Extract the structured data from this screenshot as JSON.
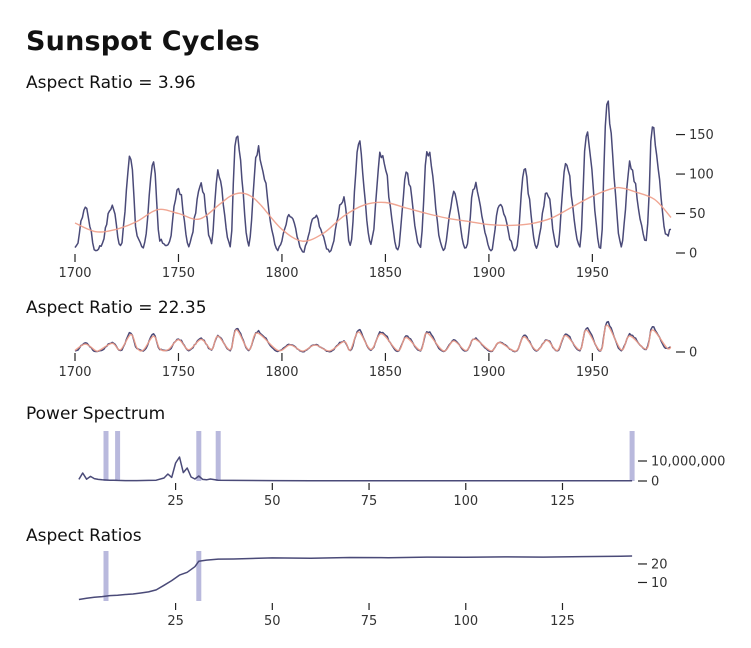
{
  "page": {
    "title": "Sunspot Cycles"
  },
  "chart_data": [
    {
      "type": "line",
      "title": "Aspect Ratio = 3.96",
      "xlabel": "",
      "ylabel": "",
      "xlim": [
        1700,
        1988
      ],
      "ylim": [
        0,
        190
      ],
      "x_ticks": [
        1700,
        1750,
        1800,
        1850,
        1900,
        1950
      ],
      "y_ticks": [
        0,
        50,
        100,
        150
      ],
      "grid": false,
      "series": [
        {
          "color": "#4a4a78",
          "style": "sunspot-monthly",
          "x": [
            1700,
            1705,
            1710,
            1712,
            1718,
            1722,
            1727,
            1730,
            1733,
            1738,
            1741,
            1745,
            1750,
            1755,
            1761,
            1766,
            1769,
            1775,
            1778,
            1784,
            1788,
            1798,
            1804,
            1810,
            1816,
            1823,
            1830,
            1833,
            1837,
            1843,
            1848,
            1856,
            1860,
            1867,
            1870,
            1878,
            1883,
            1889,
            1893,
            1901,
            1905,
            1913,
            1917,
            1923,
            1928,
            1933,
            1937,
            1944,
            1947,
            1954,
            1957,
            1964,
            1968,
            1976,
            1979,
            1986,
            1988
          ],
          "y": [
            5,
            58,
            3,
            8,
            60,
            10,
            122,
            20,
            8,
            110,
            15,
            10,
            83,
            10,
            85,
            12,
            106,
            10,
            155,
            10,
            132,
            5,
            47,
            2,
            46,
            3,
            70,
            8,
            140,
            12,
            128,
            5,
            98,
            7,
            132,
            3,
            75,
            5,
            87,
            3,
            63,
            2,
            104,
            6,
            78,
            5,
            114,
            10,
            152,
            5,
            190,
            10,
            110,
            15,
            155,
            22,
            30
          ]
        },
        {
          "color": "#ee9c87",
          "style": "smooth",
          "x": [
            1700,
            1710,
            1720,
            1730,
            1740,
            1750,
            1760,
            1770,
            1775,
            1780,
            1785,
            1790,
            1800,
            1810,
            1820,
            1830,
            1840,
            1850,
            1860,
            1870,
            1880,
            1890,
            1900,
            1910,
            1920,
            1930,
            1940,
            1950,
            1960,
            1965,
            1970,
            1980,
            1988
          ],
          "y": [
            38,
            27,
            30,
            40,
            55,
            50,
            43,
            62,
            72,
            76,
            72,
            60,
            30,
            15,
            25,
            47,
            61,
            64,
            57,
            50,
            44,
            40,
            36,
            35,
            37,
            44,
            58,
            72,
            82,
            82,
            78,
            68,
            45
          ]
        }
      ]
    },
    {
      "type": "line",
      "title": "Aspect Ratio = 22.35",
      "xlabel": "",
      "ylabel": "",
      "xlim": [
        1700,
        1988
      ],
      "ylim": [
        0,
        190
      ],
      "x_ticks": [
        1700,
        1750,
        1800,
        1850,
        1900,
        1950
      ],
      "y_ticks": [
        0
      ],
      "grid": false,
      "series": [
        {
          "color": "#4a4a78",
          "style": "sunspot-monthly",
          "x": [
            1700,
            1705,
            1710,
            1712,
            1718,
            1722,
            1727,
            1730,
            1733,
            1738,
            1741,
            1745,
            1750,
            1755,
            1761,
            1766,
            1769,
            1775,
            1778,
            1784,
            1788,
            1798,
            1804,
            1810,
            1816,
            1823,
            1830,
            1833,
            1837,
            1843,
            1848,
            1856,
            1860,
            1867,
            1870,
            1878,
            1883,
            1889,
            1893,
            1901,
            1905,
            1913,
            1917,
            1923,
            1928,
            1933,
            1937,
            1944,
            1947,
            1954,
            1957,
            1964,
            1968,
            1976,
            1979,
            1986,
            1988
          ],
          "y": [
            5,
            58,
            3,
            8,
            60,
            10,
            122,
            20,
            8,
            110,
            15,
            10,
            83,
            10,
            85,
            12,
            106,
            10,
            155,
            10,
            132,
            5,
            47,
            2,
            46,
            3,
            70,
            8,
            140,
            12,
            128,
            5,
            98,
            7,
            132,
            3,
            75,
            5,
            87,
            3,
            63,
            2,
            104,
            6,
            78,
            5,
            114,
            10,
            152,
            5,
            190,
            10,
            110,
            15,
            155,
            22,
            30
          ]
        },
        {
          "color": "#ee9c87",
          "style": "smooth",
          "x": [
            1700,
            1705,
            1710,
            1712,
            1718,
            1722,
            1727,
            1730,
            1733,
            1738,
            1741,
            1745,
            1750,
            1755,
            1761,
            1766,
            1769,
            1775,
            1778,
            1784,
            1788,
            1798,
            1804,
            1810,
            1816,
            1823,
            1830,
            1833,
            1837,
            1843,
            1848,
            1856,
            1860,
            1867,
            1870,
            1878,
            1883,
            1889,
            1893,
            1901,
            1905,
            1913,
            1917,
            1923,
            1928,
            1933,
            1937,
            1944,
            1947,
            1954,
            1957,
            1964,
            1968,
            1976,
            1979,
            1986,
            1988
          ],
          "y": [
            10,
            50,
            8,
            12,
            55,
            14,
            110,
            25,
            12,
            100,
            20,
            14,
            78,
            14,
            80,
            16,
            100,
            14,
            140,
            14,
            120,
            10,
            45,
            6,
            44,
            7,
            66,
            12,
            126,
            16,
            116,
            9,
            92,
            11,
            120,
            7,
            70,
            9,
            82,
            7,
            60,
            6,
            96,
            10,
            74,
            9,
            104,
            14,
            138,
            9,
            170,
            14,
            102,
            19,
            140,
            26,
            32
          ]
        }
      ]
    },
    {
      "type": "line",
      "title": "Power Spectrum",
      "xlabel": "",
      "ylabel": "",
      "xlim": [
        -1,
        144
      ],
      "ylim": [
        0,
        25000000
      ],
      "x_ticks": [
        25,
        50,
        75,
        100,
        125
      ],
      "y_ticks": [
        0,
        10000000
      ],
      "y_tick_labels": [
        "0",
        "10,000,000"
      ],
      "grid": false,
      "markers": [
        7,
        10,
        31,
        36,
        143
      ],
      "marker_color": "#b9b9dd",
      "series": [
        {
          "color": "#4a4a78",
          "x": [
            0,
            1,
            2,
            3,
            4,
            5,
            6,
            7,
            8,
            9,
            10,
            12,
            15,
            18,
            20,
            22,
            23,
            24,
            25,
            26,
            27,
            28,
            29,
            30,
            31,
            32,
            33,
            34,
            36,
            40,
            50,
            60,
            80,
            100,
            120,
            140,
            143
          ],
          "y": [
            800000,
            4000000,
            900000,
            2300000,
            1200000,
            800000,
            600000,
            500000,
            400000,
            400000,
            300000,
            200000,
            200000,
            300000,
            400000,
            1500000,
            3500000,
            1800000,
            9000000,
            12000000,
            4200000,
            6500000,
            2000000,
            1000000,
            2500000,
            800000,
            600000,
            1000000,
            400000,
            300000,
            200000,
            150000,
            100000,
            100000,
            80000,
            80000,
            80000
          ]
        }
      ]
    },
    {
      "type": "line",
      "title": "Aspect Ratios",
      "xlabel": "",
      "ylabel": "",
      "xlim": [
        -1,
        144
      ],
      "ylim": [
        0,
        27
      ],
      "x_ticks": [
        25,
        50,
        75,
        100,
        125
      ],
      "y_ticks": [
        10,
        20
      ],
      "grid": false,
      "markers": [
        7,
        31
      ],
      "marker_color": "#b9b9dd",
      "series": [
        {
          "color": "#4a4a78",
          "x": [
            0,
            2,
            4,
            6,
            8,
            10,
            12,
            14,
            16,
            18,
            20,
            22,
            24,
            26,
            28,
            30,
            31,
            33,
            36,
            40,
            50,
            60,
            70,
            80,
            90,
            100,
            110,
            120,
            130,
            140,
            143
          ],
          "y": [
            0.8,
            1.5,
            2.0,
            2.4,
            2.9,
            3.1,
            3.5,
            3.8,
            4.3,
            4.9,
            6.0,
            8.5,
            11.0,
            14.0,
            15.5,
            18.5,
            21.5,
            22.1,
            22.6,
            22.7,
            23.3,
            23.1,
            23.5,
            23.4,
            23.7,
            23.6,
            23.8,
            23.7,
            24.0,
            24.2,
            24.3
          ]
        }
      ]
    }
  ]
}
